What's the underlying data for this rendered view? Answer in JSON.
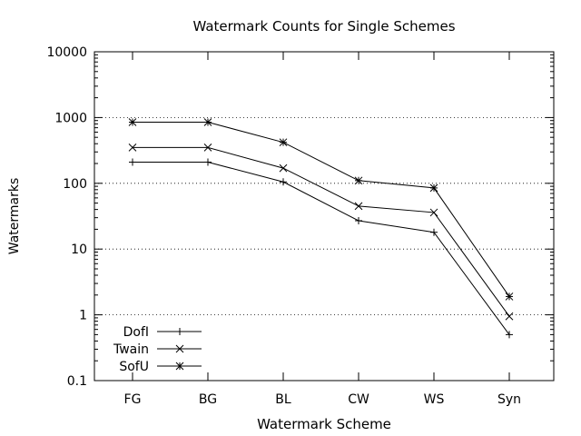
{
  "chart_data": {
    "type": "line",
    "title": "Watermark Counts for Single Schemes",
    "xlabel": "Watermark Scheme",
    "ylabel": "Watermarks",
    "yscale": "log",
    "ylim": [
      0.1,
      10000
    ],
    "yticks": [
      {
        "value": 0.1,
        "label": "0.1"
      },
      {
        "value": 1,
        "label": "1"
      },
      {
        "value": 10,
        "label": "10"
      },
      {
        "value": 100,
        "label": "100"
      },
      {
        "value": 1000,
        "label": "1000"
      },
      {
        "value": 10000,
        "label": "10000"
      }
    ],
    "categories": [
      "FG",
      "BG",
      "BL",
      "CW",
      "WS",
      "Syn"
    ],
    "grid": "horizontal dotted",
    "legend_position": "bottom-left",
    "series": [
      {
        "name": "DofI",
        "marker": "plus",
        "values": [
          210,
          210,
          105,
          27,
          18,
          0.5
        ]
      },
      {
        "name": "Twain",
        "marker": "cross",
        "values": [
          350,
          350,
          170,
          45,
          36,
          0.95
        ]
      },
      {
        "name": "SofU",
        "marker": "star",
        "values": [
          850,
          850,
          420,
          110,
          85,
          1.9
        ]
      }
    ]
  }
}
